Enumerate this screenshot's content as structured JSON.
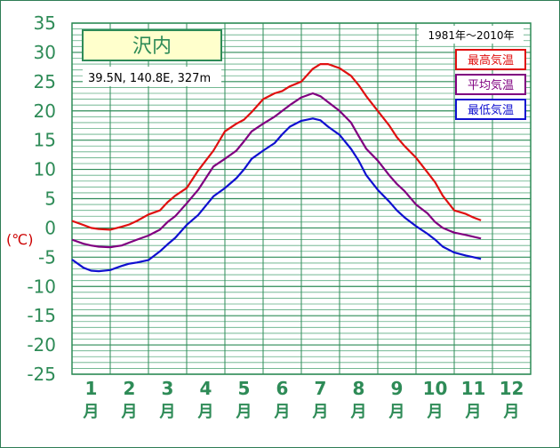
{
  "chart_data": {
    "type": "line",
    "title": "沢内",
    "subtitle": "39.5N,  140.8E,  327m",
    "period": "1981年〜2010年",
    "ylabel": "(℃)",
    "ylim": [
      -25,
      35
    ],
    "yticks": [
      35,
      30,
      25,
      20,
      15,
      10,
      5,
      0,
      -5,
      -10,
      -15,
      -20,
      -25
    ],
    "xlim": [
      0.5,
      12.5
    ],
    "categories": [
      "1",
      "2",
      "3",
      "4",
      "5",
      "6",
      "7",
      "8",
      "9",
      "10",
      "11",
      "12"
    ],
    "month_unit": "月",
    "grid": true,
    "legend_position": "top-right",
    "series": [
      {
        "name": "最高気温",
        "color": "#e01010",
        "points": [
          [
            0.5,
            1.2
          ],
          [
            0.8,
            0.5
          ],
          [
            1.0,
            0.0
          ],
          [
            1.2,
            -0.2
          ],
          [
            1.5,
            -0.3
          ],
          [
            1.8,
            0.2
          ],
          [
            2.0,
            0.6
          ],
          [
            2.2,
            1.2
          ],
          [
            2.5,
            2.3
          ],
          [
            2.8,
            3.0
          ],
          [
            3.0,
            4.4
          ],
          [
            3.2,
            5.5
          ],
          [
            3.5,
            6.8
          ],
          [
            3.8,
            9.8
          ],
          [
            4.0,
            11.5
          ],
          [
            4.2,
            13.2
          ],
          [
            4.5,
            16.5
          ],
          [
            4.8,
            17.8
          ],
          [
            5.0,
            18.5
          ],
          [
            5.2,
            19.8
          ],
          [
            5.5,
            22.0
          ],
          [
            5.8,
            23.0
          ],
          [
            6.0,
            23.4
          ],
          [
            6.2,
            24.2
          ],
          [
            6.5,
            25.0
          ],
          [
            6.8,
            27.2
          ],
          [
            7.0,
            28.0
          ],
          [
            7.2,
            28.0
          ],
          [
            7.5,
            27.3
          ],
          [
            7.8,
            26.0
          ],
          [
            8.0,
            24.4
          ],
          [
            8.2,
            22.5
          ],
          [
            8.5,
            20.0
          ],
          [
            8.8,
            17.5
          ],
          [
            9.0,
            15.5
          ],
          [
            9.2,
            14.0
          ],
          [
            9.5,
            12.0
          ],
          [
            9.8,
            9.5
          ],
          [
            10.0,
            7.8
          ],
          [
            10.2,
            5.5
          ],
          [
            10.5,
            3.0
          ],
          [
            10.8,
            2.4
          ],
          [
            11.0,
            1.8
          ],
          [
            11.2,
            1.3
          ]
        ]
      },
      {
        "name": "平均気温",
        "color": "#800080",
        "points": [
          [
            0.5,
            -2.0
          ],
          [
            0.8,
            -2.7
          ],
          [
            1.0,
            -3.0
          ],
          [
            1.2,
            -3.2
          ],
          [
            1.5,
            -3.3
          ],
          [
            1.8,
            -3.0
          ],
          [
            2.0,
            -2.5
          ],
          [
            2.2,
            -2.0
          ],
          [
            2.5,
            -1.3
          ],
          [
            2.8,
            -0.3
          ],
          [
            3.0,
            1.0
          ],
          [
            3.2,
            2.0
          ],
          [
            3.5,
            4.2
          ],
          [
            3.8,
            6.5
          ],
          [
            4.0,
            8.5
          ],
          [
            4.2,
            10.5
          ],
          [
            4.5,
            11.8
          ],
          [
            4.8,
            13.2
          ],
          [
            5.0,
            14.8
          ],
          [
            5.2,
            16.5
          ],
          [
            5.5,
            17.8
          ],
          [
            5.8,
            19.0
          ],
          [
            6.0,
            20.0
          ],
          [
            6.2,
            21.0
          ],
          [
            6.5,
            22.3
          ],
          [
            6.8,
            23.0
          ],
          [
            7.0,
            22.5
          ],
          [
            7.2,
            21.5
          ],
          [
            7.5,
            20.0
          ],
          [
            7.8,
            18.0
          ],
          [
            8.0,
            15.7
          ],
          [
            8.2,
            13.5
          ],
          [
            8.5,
            11.5
          ],
          [
            8.8,
            9.0
          ],
          [
            9.0,
            7.5
          ],
          [
            9.2,
            6.3
          ],
          [
            9.5,
            4.0
          ],
          [
            9.8,
            2.5
          ],
          [
            10.0,
            1.0
          ],
          [
            10.2,
            0.0
          ],
          [
            10.5,
            -0.8
          ],
          [
            10.8,
            -1.2
          ],
          [
            11.0,
            -1.5
          ],
          [
            11.2,
            -1.8
          ]
        ]
      },
      {
        "name": "最低気温",
        "color": "#1010d0",
        "points": [
          [
            0.5,
            -5.4
          ],
          [
            0.8,
            -6.8
          ],
          [
            1.0,
            -7.3
          ],
          [
            1.2,
            -7.4
          ],
          [
            1.5,
            -7.2
          ],
          [
            1.8,
            -6.5
          ],
          [
            2.0,
            -6.1
          ],
          [
            2.2,
            -5.9
          ],
          [
            2.5,
            -5.5
          ],
          [
            2.8,
            -4.0
          ],
          [
            3.0,
            -2.8
          ],
          [
            3.2,
            -1.7
          ],
          [
            3.5,
            0.5
          ],
          [
            3.8,
            2.2
          ],
          [
            4.0,
            3.8
          ],
          [
            4.2,
            5.4
          ],
          [
            4.5,
            6.8
          ],
          [
            4.8,
            8.5
          ],
          [
            5.0,
            10.0
          ],
          [
            5.2,
            11.8
          ],
          [
            5.5,
            13.2
          ],
          [
            5.8,
            14.5
          ],
          [
            6.0,
            16.0
          ],
          [
            6.2,
            17.3
          ],
          [
            6.5,
            18.3
          ],
          [
            6.8,
            18.7
          ],
          [
            7.0,
            18.4
          ],
          [
            7.2,
            17.3
          ],
          [
            7.5,
            15.9
          ],
          [
            7.8,
            13.5
          ],
          [
            8.0,
            11.5
          ],
          [
            8.2,
            9.0
          ],
          [
            8.5,
            6.5
          ],
          [
            8.8,
            4.5
          ],
          [
            9.0,
            3.0
          ],
          [
            9.2,
            1.8
          ],
          [
            9.5,
            0.3
          ],
          [
            9.8,
            -1.0
          ],
          [
            10.0,
            -2.0
          ],
          [
            10.2,
            -3.2
          ],
          [
            10.5,
            -4.2
          ],
          [
            10.8,
            -4.7
          ],
          [
            11.0,
            -5.0
          ],
          [
            11.2,
            -5.3
          ]
        ]
      }
    ]
  }
}
